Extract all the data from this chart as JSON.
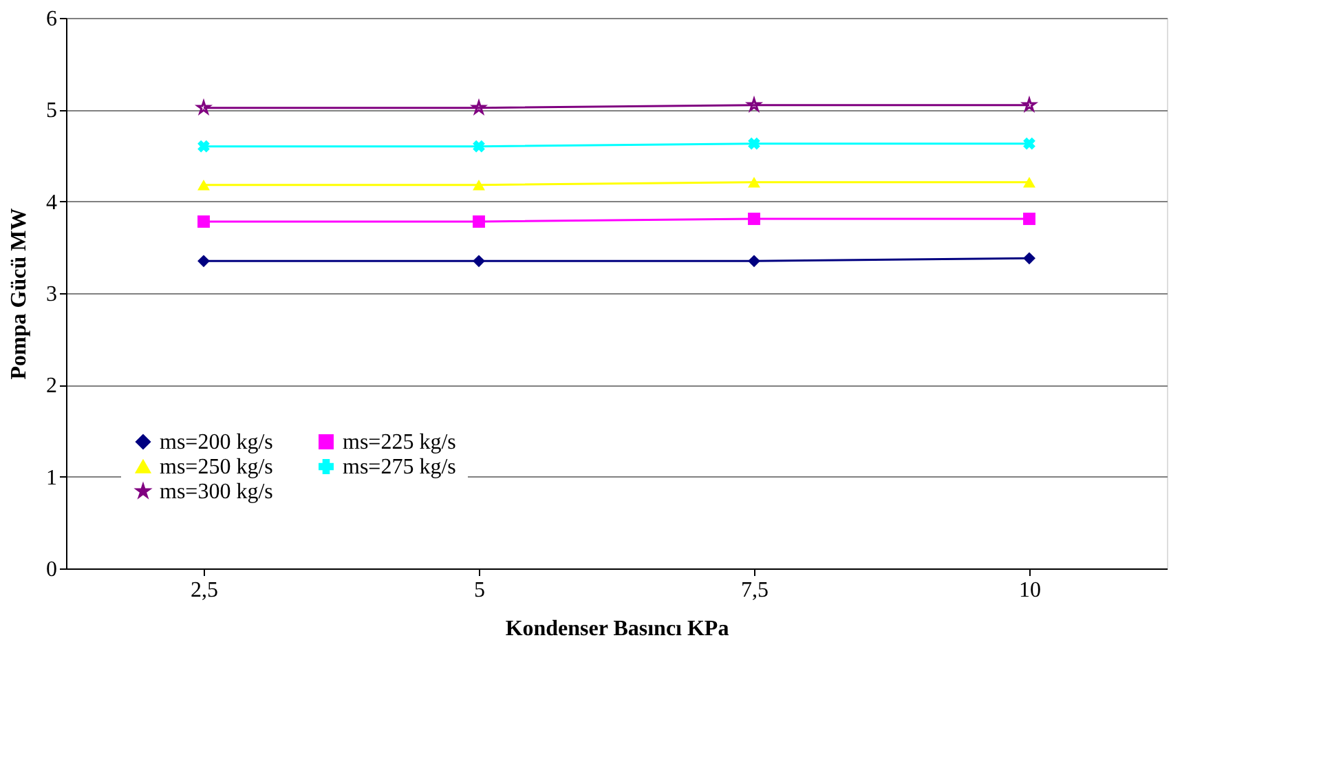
{
  "chart_data": {
    "type": "line",
    "xlabel": "Kondenser Basıncı  KPa",
    "ylabel": "Pompa Gücü  MW",
    "categories": [
      "2,5",
      "5",
      "7,5",
      "10"
    ],
    "series": [
      {
        "name": "ms=200 kg/s",
        "color": "#000080",
        "marker": "diamond",
        "values": [
          3.35,
          3.35,
          3.35,
          3.38
        ]
      },
      {
        "name": "ms=225 kg/s",
        "color": "#ff00ff",
        "marker": "square",
        "values": [
          3.78,
          3.78,
          3.81,
          3.81
        ]
      },
      {
        "name": "ms=250 kg/s",
        "color": "#ffff00",
        "marker": "triangle",
        "values": [
          4.18,
          4.18,
          4.21,
          4.21
        ]
      },
      {
        "name": "ms=275 kg/s",
        "color": "#00ffff",
        "marker": "cross",
        "values": [
          4.6,
          4.6,
          4.63,
          4.63
        ]
      },
      {
        "name": "ms=300 kg/s",
        "color": "#800080",
        "marker": "star",
        "values": [
          5.02,
          5.02,
          5.05,
          5.05
        ]
      }
    ],
    "ylim": [
      0,
      6
    ],
    "yticks": [
      0,
      1,
      2,
      3,
      4,
      5,
      6
    ],
    "grid": "y",
    "legend": "bottom left",
    "line_style": "solid"
  }
}
